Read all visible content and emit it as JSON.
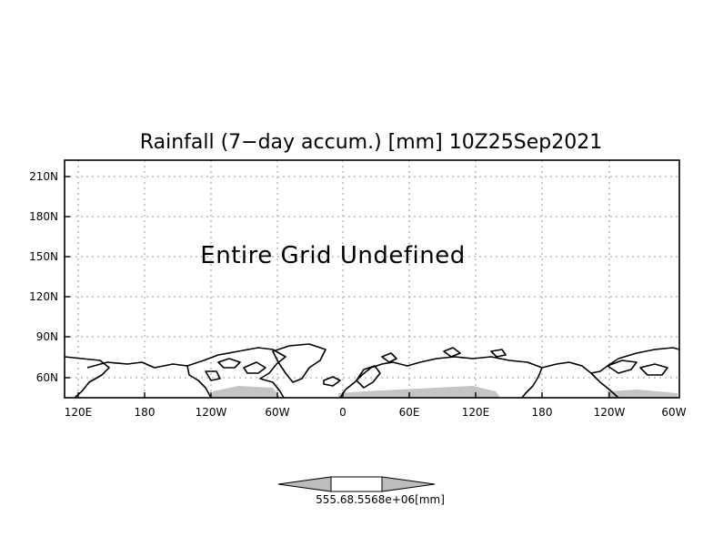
{
  "title": "Rainfall (7−day accum.) [mm] 10Z25Sep2021",
  "message": "Entire Grid Undefined",
  "y_ticks": [
    "210N",
    "180N",
    "150N",
    "120N",
    "90N",
    "60N"
  ],
  "x_ticks": [
    "120E",
    "180",
    "120W",
    "60W",
    "0",
    "60E",
    "120E",
    "180",
    "120W",
    "60W"
  ],
  "colorbar": {
    "label": "555.68.5568e+06[mm]",
    "colors": {
      "arrow": "#bdbdbd",
      "middle": "#ffffff"
    }
  },
  "colors": {
    "land_shade": "#c4c4c4",
    "grid": "#9a9a9a",
    "coast": "#000000"
  }
}
